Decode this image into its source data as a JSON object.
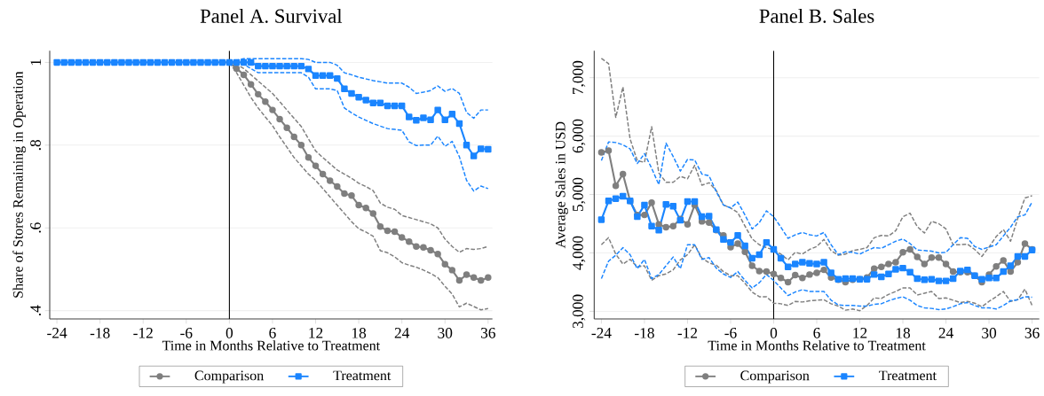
{
  "chart_data": [
    {
      "type": "line",
      "title": "Panel A. Survival",
      "xlabel": "Time in Months Relative to Treatment",
      "ylabel": "Share of Stores Remaining in Operation",
      "x": [
        -24,
        -23,
        -22,
        -21,
        -20,
        -19,
        -18,
        -17,
        -16,
        -15,
        -14,
        -13,
        -12,
        -11,
        -10,
        -9,
        -8,
        -7,
        -6,
        -5,
        -4,
        -3,
        -2,
        -1,
        0,
        1,
        2,
        3,
        4,
        5,
        6,
        7,
        8,
        9,
        10,
        11,
        12,
        13,
        14,
        15,
        16,
        17,
        18,
        19,
        20,
        21,
        22,
        23,
        24,
        25,
        26,
        27,
        28,
        29,
        30,
        31,
        32,
        33,
        34,
        35,
        36
      ],
      "xlim": [
        -25,
        36.6
      ],
      "xticks": [
        -24,
        -18,
        -12,
        -6,
        0,
        6,
        12,
        18,
        24,
        30,
        36
      ],
      "ylim": [
        0.38,
        1.028
      ],
      "yticks": [
        {
          "value": 0.4,
          "label": ".4"
        },
        {
          "value": 0.6,
          "label": ".6"
        },
        {
          "value": 0.8,
          "label": ".8"
        },
        {
          "value": 1,
          "label": "1"
        }
      ],
      "grid": "y",
      "legend": "bottom",
      "ref_lines": [
        {
          "axis": "x",
          "value": 0,
          "color": "#000000"
        }
      ],
      "series": [
        {
          "color": "#7f7f7f",
          "marker": "none",
          "line_style": "dashed",
          "values": [
            null,
            null,
            null,
            null,
            null,
            null,
            null,
            null,
            null,
            null,
            null,
            null,
            null,
            null,
            null,
            null,
            null,
            null,
            null,
            null,
            null,
            null,
            null,
            null,
            1,
            0.975,
            0.945,
            0.915,
            0.89,
            0.868,
            0.847,
            0.82,
            0.795,
            0.77,
            0.75,
            0.73,
            0.715,
            0.695,
            0.675,
            0.655,
            0.635,
            0.615,
            0.598,
            0.59,
            0.58,
            0.545,
            0.54,
            0.53,
            0.516,
            0.51,
            0.505,
            0.498,
            0.49,
            0.48,
            0.459,
            0.44,
            0.409,
            0.418,
            0.41,
            0.402,
            0.405
          ]
        },
        {
          "color": "#7f7f7f",
          "marker": "none",
          "line_style": "dashed",
          "values": [
            null,
            null,
            null,
            null,
            null,
            null,
            null,
            null,
            null,
            null,
            null,
            null,
            null,
            null,
            null,
            null,
            null,
            null,
            null,
            null,
            null,
            null,
            null,
            null,
            1,
            0.995,
            0.985,
            0.97,
            0.955,
            0.94,
            0.925,
            0.905,
            0.885,
            0.865,
            0.845,
            0.815,
            0.786,
            0.77,
            0.755,
            0.74,
            0.73,
            0.72,
            0.708,
            0.7,
            0.69,
            0.66,
            0.65,
            0.645,
            0.63,
            0.625,
            0.62,
            0.615,
            0.61,
            0.6,
            0.573,
            0.555,
            0.541,
            0.55,
            0.548,
            0.55,
            0.555
          ]
        },
        {
          "color": "#1a85ff",
          "marker": "none",
          "line_style": "dashed",
          "values": [
            null,
            null,
            null,
            null,
            null,
            null,
            null,
            null,
            null,
            null,
            null,
            null,
            null,
            null,
            null,
            null,
            null,
            null,
            null,
            null,
            null,
            null,
            null,
            null,
            1,
            1,
            0.995,
            0.985,
            0.975,
            0.975,
            0.975,
            0.975,
            0.975,
            0.975,
            0.975,
            0.964,
            0.936,
            0.936,
            0.936,
            0.932,
            0.89,
            0.878,
            0.868,
            0.86,
            0.852,
            0.846,
            0.84,
            0.838,
            0.836,
            0.808,
            0.799,
            0.8,
            0.8,
            0.822,
            0.797,
            0.809,
            0.772,
            0.715,
            0.689,
            0.701,
            0.695
          ]
        },
        {
          "color": "#1a85ff",
          "marker": "none",
          "line_style": "dashed",
          "values": [
            null,
            null,
            null,
            null,
            null,
            null,
            null,
            null,
            null,
            null,
            null,
            null,
            null,
            null,
            null,
            null,
            null,
            null,
            null,
            null,
            null,
            null,
            null,
            null,
            1,
            1.005,
            1.009,
            1.009,
            1.009,
            1.009,
            1.009,
            1.009,
            1.009,
            1.009,
            1.009,
            1.007,
            1,
            1,
            1,
            0.993,
            0.975,
            0.97,
            0.964,
            0.96,
            0.956,
            0.953,
            0.95,
            0.95,
            0.95,
            0.94,
            0.925,
            0.928,
            0.932,
            0.943,
            0.93,
            0.937,
            0.925,
            0.879,
            0.865,
            0.885,
            0.885
          ]
        },
        {
          "name": "Comparison",
          "color": "#7f7f7f",
          "marker": "circle",
          "line_style": "solid",
          "values": [
            null,
            null,
            null,
            null,
            null,
            null,
            null,
            null,
            null,
            null,
            null,
            null,
            null,
            null,
            null,
            null,
            null,
            null,
            null,
            null,
            null,
            null,
            null,
            null,
            1,
            0.985,
            0.97,
            0.947,
            0.923,
            0.905,
            0.885,
            0.863,
            0.842,
            0.82,
            0.8,
            0.77,
            0.75,
            0.73,
            0.714,
            0.7,
            0.683,
            0.678,
            0.655,
            0.648,
            0.635,
            0.603,
            0.593,
            0.591,
            0.577,
            0.567,
            0.555,
            0.553,
            0.546,
            0.537,
            0.512,
            0.498,
            0.473,
            0.487,
            0.48,
            0.473,
            0.48
          ]
        },
        {
          "name": "Treatment",
          "color": "#1a85ff",
          "marker": "square",
          "line_style": "solid",
          "values": [
            1,
            1,
            1,
            1,
            1,
            1,
            1,
            1,
            1,
            1,
            1,
            1,
            1,
            1,
            1,
            1,
            1,
            1,
            1,
            1,
            1,
            1,
            1,
            1,
            1,
            1,
            1,
            1,
            0.991,
            0.991,
            0.991,
            0.991,
            0.991,
            0.991,
            0.991,
            0.984,
            0.968,
            0.968,
            0.968,
            0.961,
            0.936,
            0.925,
            0.916,
            0.909,
            0.902,
            0.902,
            0.895,
            0.895,
            0.895,
            0.868,
            0.86,
            0.866,
            0.861,
            0.885,
            0.861,
            0.875,
            0.852,
            0.8,
            0.774,
            0.791,
            0.79
          ]
        }
      ]
    },
    {
      "type": "line",
      "title": "Panel B. Sales",
      "xlabel": "Time in Months Relative to Treatment",
      "ylabel": "Average Sales in USD",
      "x": [
        -24,
        -23,
        -22,
        -21,
        -20,
        -19,
        -18,
        -17,
        -16,
        -15,
        -14,
        -13,
        -12,
        -11,
        -10,
        -9,
        -8,
        -7,
        -6,
        -5,
        -4,
        -3,
        -2,
        -1,
        0,
        1,
        2,
        3,
        4,
        5,
        6,
        7,
        8,
        9,
        10,
        11,
        12,
        13,
        14,
        15,
        16,
        17,
        18,
        19,
        20,
        21,
        22,
        23,
        24,
        25,
        26,
        27,
        28,
        29,
        30,
        31,
        32,
        33,
        34,
        35,
        36
      ],
      "xlim": [
        -25,
        37
      ],
      "xticks": [
        -24,
        -18,
        -12,
        -6,
        0,
        6,
        12,
        18,
        24,
        30,
        36
      ],
      "ylim": [
        2870,
        7460
      ],
      "yticks": [
        {
          "value": 3000,
          "label": "3,000"
        },
        {
          "value": 4000,
          "label": "4,000"
        },
        {
          "value": 5000,
          "label": "5,000"
        },
        {
          "value": 6000,
          "label": "6,000"
        },
        {
          "value": 7000,
          "label": "7,000"
        }
      ],
      "grid": "y",
      "legend": "bottom",
      "ref_lines": [
        {
          "axis": "x",
          "value": 0,
          "color": "#000000"
        }
      ],
      "series": [
        {
          "color": "#7f7f7f",
          "marker": "none",
          "line_style": "dashed",
          "values": [
            4140,
            4260,
            3980,
            3810,
            3890,
            3760,
            3780,
            3530,
            3610,
            3640,
            3710,
            3880,
            3970,
            4140,
            3910,
            3830,
            3790,
            3680,
            3610,
            3610,
            3480,
            3330,
            3250,
            3250,
            3140,
            3130,
            3100,
            3170,
            3160,
            3180,
            3190,
            3200,
            3130,
            3090,
            3020,
            3040,
            3010,
            3100,
            3230,
            3220,
            3290,
            3340,
            3400,
            3400,
            3280,
            3310,
            3340,
            3220,
            3230,
            3190,
            3150,
            3170,
            3140,
            3080,
            3170,
            3250,
            3340,
            3170,
            3200,
            3380,
            3100
          ]
        },
        {
          "color": "#7f7f7f",
          "marker": "none",
          "line_style": "dashed",
          "values": [
            7330,
            7240,
            6320,
            6840,
            5950,
            5580,
            5550,
            6160,
            5370,
            5210,
            5210,
            5310,
            5270,
            5500,
            5160,
            5200,
            5070,
            4820,
            4770,
            4690,
            4460,
            4240,
            4140,
            4090,
            4050,
            3980,
            3880,
            4010,
            3980,
            4060,
            4110,
            4230,
            4040,
            3960,
            3980,
            4040,
            4060,
            4090,
            4260,
            4300,
            4290,
            4380,
            4620,
            4680,
            4450,
            4340,
            4540,
            4500,
            4410,
            4140,
            4140,
            4150,
            4060,
            3940,
            4100,
            4280,
            4400,
            4200,
            4590,
            4940,
            4980
          ]
        },
        {
          "color": "#1a85ff",
          "marker": "none",
          "line_style": "dashed",
          "values": [
            3560,
            3860,
            3960,
            4090,
            3970,
            3730,
            3890,
            3560,
            3630,
            3780,
            3930,
            3730,
            4140,
            4140,
            3890,
            3920,
            3740,
            3640,
            3580,
            3680,
            3530,
            3400,
            3490,
            3630,
            3530,
            3400,
            3270,
            3330,
            3370,
            3340,
            3340,
            3340,
            3190,
            3110,
            3100,
            3100,
            3090,
            3090,
            3120,
            3130,
            3180,
            3220,
            3250,
            3190,
            3100,
            3060,
            3050,
            3030,
            3040,
            3080,
            3130,
            3150,
            3100,
            3060,
            3060,
            3040,
            3100,
            3180,
            3200,
            3250,
            3240
          ]
        },
        {
          "color": "#1a85ff",
          "marker": "none",
          "line_style": "dashed",
          "values": [
            5580,
            5900,
            5890,
            5850,
            5780,
            5530,
            5700,
            5450,
            5170,
            5880,
            5650,
            5400,
            5600,
            5590,
            5350,
            5320,
            5050,
            4820,
            4770,
            4870,
            4650,
            4410,
            4520,
            4720,
            4620,
            4440,
            4250,
            4310,
            4350,
            4310,
            4290,
            4350,
            4140,
            3970,
            4020,
            4010,
            3980,
            4040,
            4090,
            4080,
            4140,
            4200,
            4240,
            4160,
            4050,
            4040,
            4030,
            4000,
            4010,
            4140,
            4260,
            4250,
            4110,
            4060,
            4100,
            4140,
            4290,
            4440,
            4620,
            4650,
            4870
          ]
        },
        {
          "name": "Comparison",
          "color": "#7f7f7f",
          "marker": "circle",
          "line_style": "solid",
          "values": [
            5720,
            5750,
            5150,
            5350,
            4890,
            4650,
            4650,
            4860,
            4490,
            4440,
            4460,
            4580,
            4490,
            4820,
            4540,
            4520,
            4390,
            4300,
            4100,
            4160,
            4020,
            3780,
            3690,
            3680,
            3640,
            3570,
            3500,
            3620,
            3570,
            3630,
            3660,
            3710,
            3580,
            3540,
            3500,
            3540,
            3550,
            3580,
            3730,
            3760,
            3810,
            3840,
            4010,
            4060,
            3930,
            3810,
            3920,
            3920,
            3810,
            3680,
            3670,
            3670,
            3610,
            3500,
            3630,
            3770,
            3870,
            3680,
            3840,
            4160,
            4060
          ]
        },
        {
          "name": "Treatment",
          "color": "#1a85ff",
          "marker": "square",
          "line_style": "solid",
          "values": [
            4570,
            4890,
            4930,
            4970,
            4890,
            4620,
            4820,
            4460,
            4390,
            4830,
            4800,
            4560,
            4880,
            4880,
            4620,
            4630,
            4400,
            4230,
            4180,
            4300,
            4120,
            3910,
            3970,
            4180,
            4060,
            3910,
            3760,
            3810,
            3840,
            3820,
            3810,
            3840,
            3660,
            3550,
            3560,
            3560,
            3550,
            3550,
            3630,
            3590,
            3640,
            3720,
            3740,
            3670,
            3560,
            3540,
            3550,
            3520,
            3520,
            3560,
            3690,
            3710,
            3610,
            3550,
            3570,
            3570,
            3680,
            3780,
            3940,
            3940,
            4050
          ]
        }
      ]
    }
  ]
}
